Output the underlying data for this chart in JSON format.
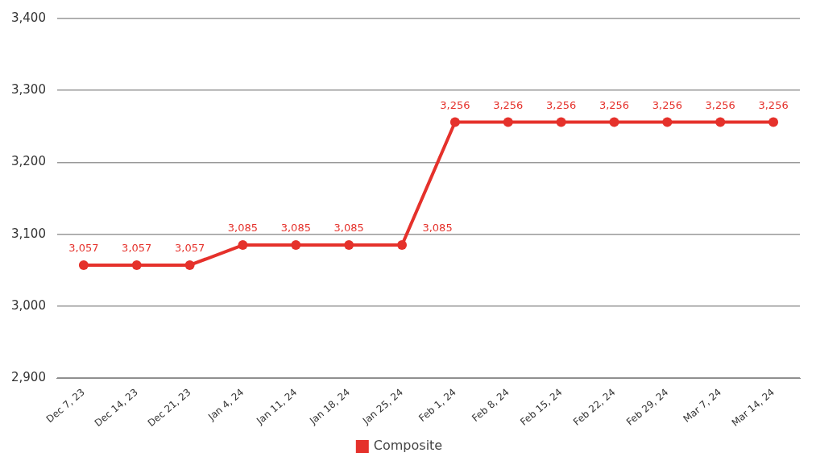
{
  "chart_data": {
    "type": "line",
    "categories": [
      "Dec 7, 23",
      "Dec 14, 23",
      "Dec 21, 23",
      "Jan 4, 24",
      "Jan 11, 24",
      "Jan 18, 24",
      "Jan 25, 24",
      "Feb 1, 24",
      "Feb 8, 24",
      "Feb 15, 24",
      "Feb 22, 24",
      "Feb 29, 24",
      "Mar 7, 24",
      "Mar 14, 24"
    ],
    "series": [
      {
        "name": "Composite",
        "color": "#e5312b",
        "values": [
          3057,
          3057,
          3057,
          3085,
          3085,
          3085,
          3085,
          3256,
          3256,
          3256,
          3256,
          3256,
          3256,
          3256
        ],
        "value_labels": [
          "3,057",
          "3,057",
          "3,057",
          "3,085",
          "3,085",
          "3,085",
          "3,085",
          "3,256",
          "3,256",
          "3,256",
          "3,256",
          "3,256",
          "3,256",
          "3,256"
        ]
      }
    ],
    "ylim": [
      2900,
      3400
    ],
    "yticks": [
      {
        "value": 2900,
        "label": "2,900"
      },
      {
        "value": 3000,
        "label": "3,000"
      },
      {
        "value": 3100,
        "label": "3,100"
      },
      {
        "value": 3200,
        "label": "3,200"
      },
      {
        "value": 3300,
        "label": "3,300"
      },
      {
        "value": 3400,
        "label": "3,400"
      }
    ],
    "grid": "y",
    "legend": "bottom",
    "marker": "circle",
    "line_style": "solid"
  }
}
